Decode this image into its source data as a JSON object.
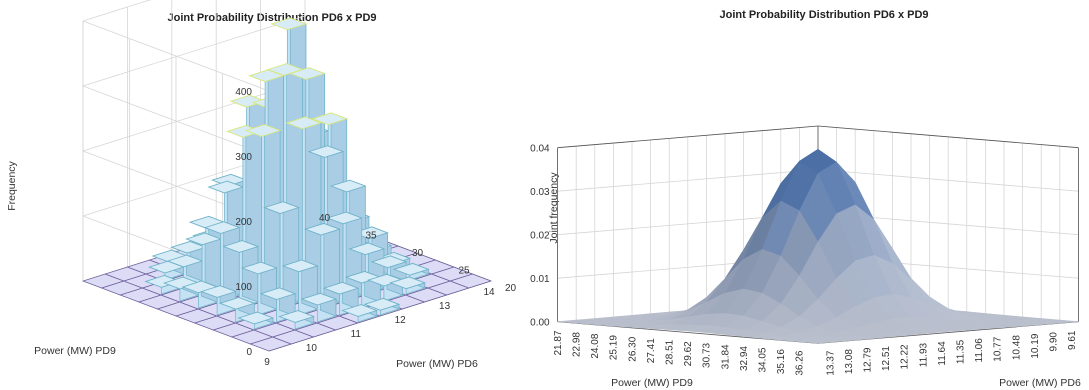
{
  "chart_data": [
    {
      "type": "bar3d",
      "title": "Joint Probability Distribution PD6 x PD9",
      "xlabel": "Power (MW) PD6",
      "ylabel": "Power (MW) PD9",
      "zlabel": "Frequency",
      "x_ticks": [
        "9",
        "10",
        "11",
        "12",
        "13",
        "14"
      ],
      "y_ticks": [
        "20",
        "25",
        "30",
        "35",
        "40"
      ],
      "z_ticks": [
        "0",
        "100",
        "200",
        "300",
        "400"
      ],
      "xlim": [
        9,
        14
      ],
      "ylim": [
        20,
        40
      ],
      "zlim": [
        0,
        400
      ],
      "grid": true,
      "colors": {
        "bar_fill": "#bcdcf0",
        "bar_edge": "#6fb3c9",
        "top_edge": "#d8e87a",
        "floor": "#dcdcf6",
        "floor_edge": "#6d5f9c"
      }
    },
    {
      "type": "surface",
      "title": "Joint Probability Distribution PD6 x PD9",
      "xlabel": "Power (MW) PD6",
      "ylabel": "Power (MW) PD9",
      "zlabel": "Joint frequency",
      "x_ticks": [
        "9.61",
        "9.90",
        "10.19",
        "10.48",
        "10.77",
        "11.06",
        "11.35",
        "11.64",
        "11.93",
        "12.22",
        "12.51",
        "12.79",
        "13.08",
        "13.37"
      ],
      "y_ticks": [
        "21.87",
        "22.98",
        "24.08",
        "25.19",
        "26.30",
        "27.41",
        "28.51",
        "29.62",
        "30.73",
        "31.84",
        "32.94",
        "34.05",
        "35.16",
        "36.26"
      ],
      "z_ticks": [
        "0.00",
        "0.01",
        "0.02",
        "0.03",
        "0.04"
      ],
      "zlim": [
        0,
        0.04
      ],
      "peak": 0.04,
      "grid": true,
      "colors": {
        "low": "#dfe4f7",
        "high": "#2c5aa0",
        "frame": "#7aa6e0"
      }
    }
  ]
}
